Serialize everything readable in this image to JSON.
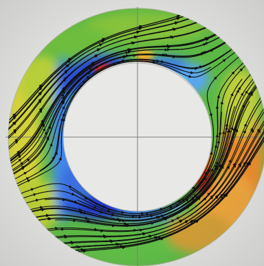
{
  "figure": {
    "type": "annular-flow-field",
    "colormap": [
      "#1a2fd6",
      "#4aa3ff",
      "#49b849",
      "#9acb2d",
      "#e3d22d",
      "#f08a23",
      "#e0231e"
    ],
    "background_color": "#dfe0de",
    "streamline_color": "#111111",
    "axes_visible": true
  }
}
